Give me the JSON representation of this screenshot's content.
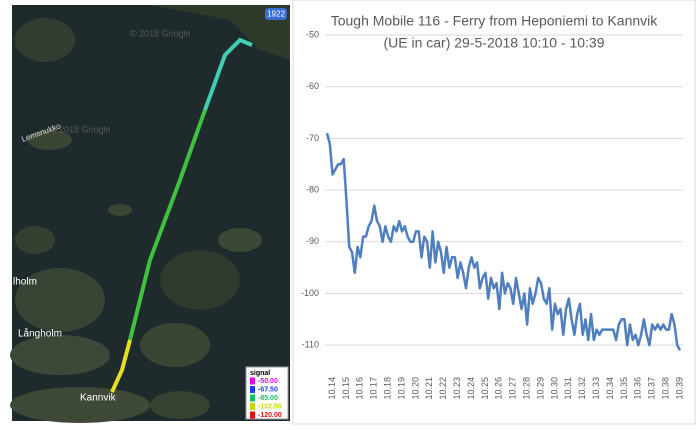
{
  "map": {
    "badge": "1922",
    "places": [
      "Långholm",
      "Kannvik",
      "lholm",
      "Lemsnukko"
    ],
    "watermark": "© 2018 Google",
    "legend": {
      "title": "signal",
      "items": [
        {
          "label": "-50.00",
          "color": "#e000e0"
        },
        {
          "label": "-67.50",
          "color": "#1a3cff"
        },
        {
          "label": "-85.00",
          "color": "#16c060"
        },
        {
          "label": "-102.50",
          "color": "#c8d800"
        },
        {
          "label": "-120.00",
          "color": "#e01010"
        }
      ]
    }
  },
  "chart_data": {
    "type": "line",
    "title": [
      "Tough Mobile 116 - Ferry from Heponiemi to Kannvik",
      "(UE in car) 29-5-2018 10:10 - 10:39"
    ],
    "categories": [
      null,
      null,
      "10.14",
      null,
      null,
      null,
      null,
      "10.15",
      null,
      null,
      null,
      null,
      "10.16",
      null,
      null,
      null,
      null,
      "10.17",
      null,
      null,
      null,
      null,
      "10.18",
      null,
      null,
      null,
      null,
      "10.19",
      null,
      null,
      null,
      null,
      "10.20",
      null,
      null,
      null,
      null,
      "10.21",
      null,
      null,
      null,
      null,
      "10.22",
      null,
      null,
      null,
      null,
      "10.23",
      null,
      null,
      null,
      null,
      "10.24",
      null,
      null,
      null,
      null,
      "10.25",
      null,
      null,
      null,
      null,
      "10.26",
      null,
      null,
      null,
      null,
      "10.27",
      null,
      null,
      null,
      null,
      "10.28",
      null,
      null,
      null,
      null,
      "10.29",
      null,
      null,
      null,
      null,
      "10.30",
      null,
      null,
      null,
      null,
      "10.31",
      null,
      null,
      null,
      null,
      "10.32",
      null,
      null,
      null,
      null,
      "10.33",
      null,
      null,
      null,
      null,
      "10.34",
      null,
      null,
      null,
      null,
      "10.35",
      null,
      null,
      null,
      null,
      "10.36",
      null,
      null,
      null,
      null,
      "10.37",
      null,
      null,
      null,
      null,
      "10.38",
      null,
      null,
      null,
      null,
      "10.39"
    ],
    "series": [
      {
        "color": "#4f7fbf",
        "values": [
          -69,
          -71,
          -77,
          -76,
          -75,
          -75,
          -74,
          -82,
          -91,
          -92,
          -96,
          -91,
          -93,
          -89,
          -89,
          -87,
          -86,
          -83,
          -86,
          -87,
          -90,
          -87,
          -89,
          -90,
          -87,
          -88,
          -86,
          -88,
          -87,
          -89,
          -90,
          -90,
          -88,
          -88,
          -93,
          -89,
          -90,
          -95,
          -88,
          -94,
          -90,
          -92,
          -96,
          -91,
          -95,
          -93,
          -93,
          -97,
          -94,
          -96,
          -99,
          -95,
          -93,
          -95,
          -94,
          -99,
          -97,
          -96,
          -101,
          -97,
          -99,
          -98,
          -103,
          -96,
          -100,
          -98,
          -99,
          -102,
          -97,
          -100,
          -103,
          -100,
          -106,
          -99,
          -102,
          -100,
          -97,
          -98,
          -101,
          -102,
          -99,
          -107,
          -102,
          -104,
          -103,
          -108,
          -103,
          -101,
          -105,
          -108,
          -104,
          -102,
          -108,
          -105,
          -109,
          -104,
          -109,
          -107,
          -108,
          -107,
          -107,
          -107,
          -107,
          -107,
          -109,
          -106,
          -105,
          -105,
          -110,
          -106,
          -109,
          -108,
          -110,
          -108,
          -105,
          -108,
          -110,
          -106,
          -107,
          -106,
          -107,
          -106,
          -107,
          -107,
          -104,
          -106,
          -110,
          -111
        ]
      }
    ],
    "ylim": [
      -115,
      -50
    ],
    "yticks": [
      -50,
      -60,
      -70,
      -80,
      -90,
      -100,
      -110
    ],
    "grid": true
  }
}
